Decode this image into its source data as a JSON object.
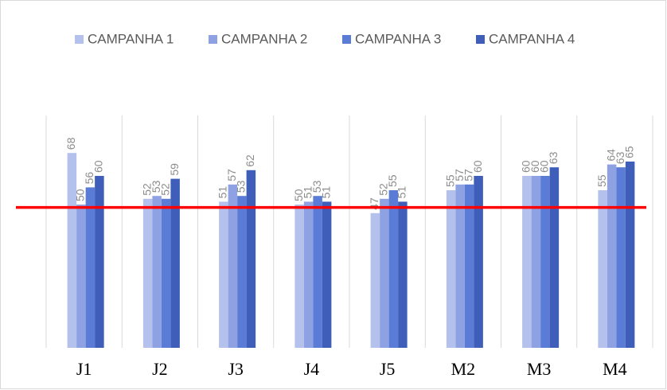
{
  "chart_data": {
    "type": "bar",
    "categories": [
      "J1",
      "J2",
      "J3",
      "J4",
      "J5",
      "M2",
      "M3",
      "M4"
    ],
    "series": [
      {
        "name": "CAMPANHA 1",
        "color": "#b4c1ec",
        "values": [
          68,
          52,
          51,
          50,
          47,
          55,
          60,
          55
        ]
      },
      {
        "name": "CAMPANHA 2",
        "color": "#8ea2e3",
        "values": [
          50,
          53,
          57,
          51,
          52,
          57,
          60,
          64
        ]
      },
      {
        "name": "CAMPANHA 3",
        "color": "#5b7cd6",
        "values": [
          56,
          52,
          53,
          53,
          55,
          57,
          60,
          63
        ]
      },
      {
        "name": "CAMPANHA 4",
        "color": "#3f5eb9",
        "values": [
          60,
          59,
          62,
          51,
          51,
          60,
          63,
          65
        ]
      }
    ],
    "ylim": [
      0,
      95
    ],
    "reference_line": {
      "value": 49,
      "color": "#ff0000"
    },
    "legend": "top"
  }
}
